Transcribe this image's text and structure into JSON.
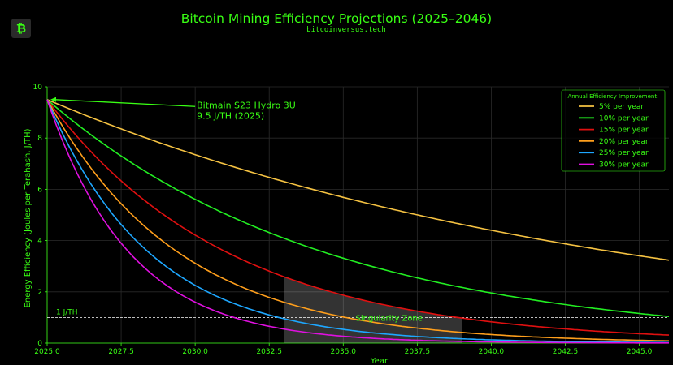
{
  "logo": {
    "glyph": "₿"
  },
  "header": {
    "title": "Bitcoin Mining Efficiency Projections (2025–2046)",
    "subtitle": "bitcoinversus.tech"
  },
  "chart_data": {
    "type": "line",
    "xlabel": "Year",
    "ylabel": "Energy Efficiency (Joules per Terahash, J/TH)",
    "xlim": [
      2025,
      2046
    ],
    "ylim": [
      0,
      10
    ],
    "x_ticks": [
      "2025.0",
      "2027.5",
      "2030.0",
      "2032.5",
      "2035.0",
      "2037.5",
      "2040.0",
      "2042.5",
      "2045.0"
    ],
    "y_ticks": [
      "0",
      "2",
      "4",
      "6",
      "8",
      "10"
    ],
    "grid": true,
    "start_value": 9.5,
    "legend": {
      "title": "Annual Efficiency Improvement:",
      "placement": "top-right"
    },
    "series": [
      {
        "name": "5% per year",
        "rate": 0.05,
        "color": "#f5c242"
      },
      {
        "name": "10% per year",
        "rate": 0.1,
        "color": "#22ee22"
      },
      {
        "name": "15% per year",
        "rate": 0.15,
        "color": "#e01010"
      },
      {
        "name": "20% per year",
        "rate": 0.2,
        "color": "#ff9f1c"
      },
      {
        "name": "25% per year",
        "rate": 0.25,
        "color": "#1ea7ff"
      },
      {
        "name": "30% per year",
        "rate": 0.3,
        "color": "#e010e0"
      }
    ],
    "reference_line": {
      "y": 1,
      "label": "1 J/TH"
    },
    "annotations": [
      {
        "text": "Bitmain S23 Hydro 3U",
        "text2": "9.5 J/TH (2025)",
        "x": 2025,
        "y": 9.5
      }
    ],
    "shaded_region": {
      "x0": 2033,
      "x1": 2039,
      "label": "Singularity Zone"
    }
  }
}
